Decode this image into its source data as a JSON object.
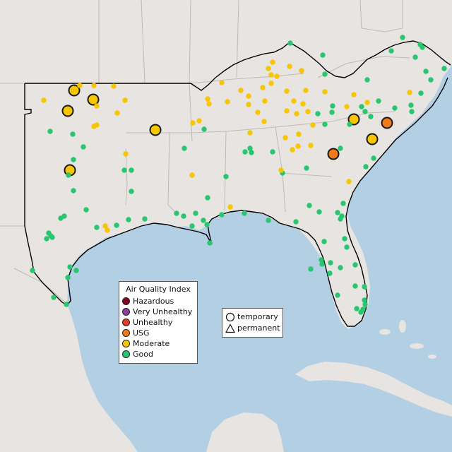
{
  "legend": {
    "title": "Air Quality Index",
    "items": [
      {
        "label": "Hazardous",
        "color": "#7e0023"
      },
      {
        "label": "Very Unhealthy",
        "color": "#8f3f97"
      },
      {
        "label": "Unhealthy",
        "color": "#e23c2a"
      },
      {
        "label": "USG",
        "color": "#f07a1a"
      },
      {
        "label": "Moderate",
        "color": "#f7c600"
      },
      {
        "label": "Good",
        "color": "#28c76f"
      }
    ]
  },
  "shape_legend": {
    "items": [
      {
        "label": "temporary",
        "icon": "circle-icon"
      },
      {
        "label": "permanent",
        "icon": "triangle-icon"
      }
    ]
  },
  "colors": {
    "water": "#b3cfe3",
    "land": "#e7e4e1",
    "outside_land": "#f0eeec",
    "state_border": "#bdbab6",
    "region_outline": "#000000"
  }
}
